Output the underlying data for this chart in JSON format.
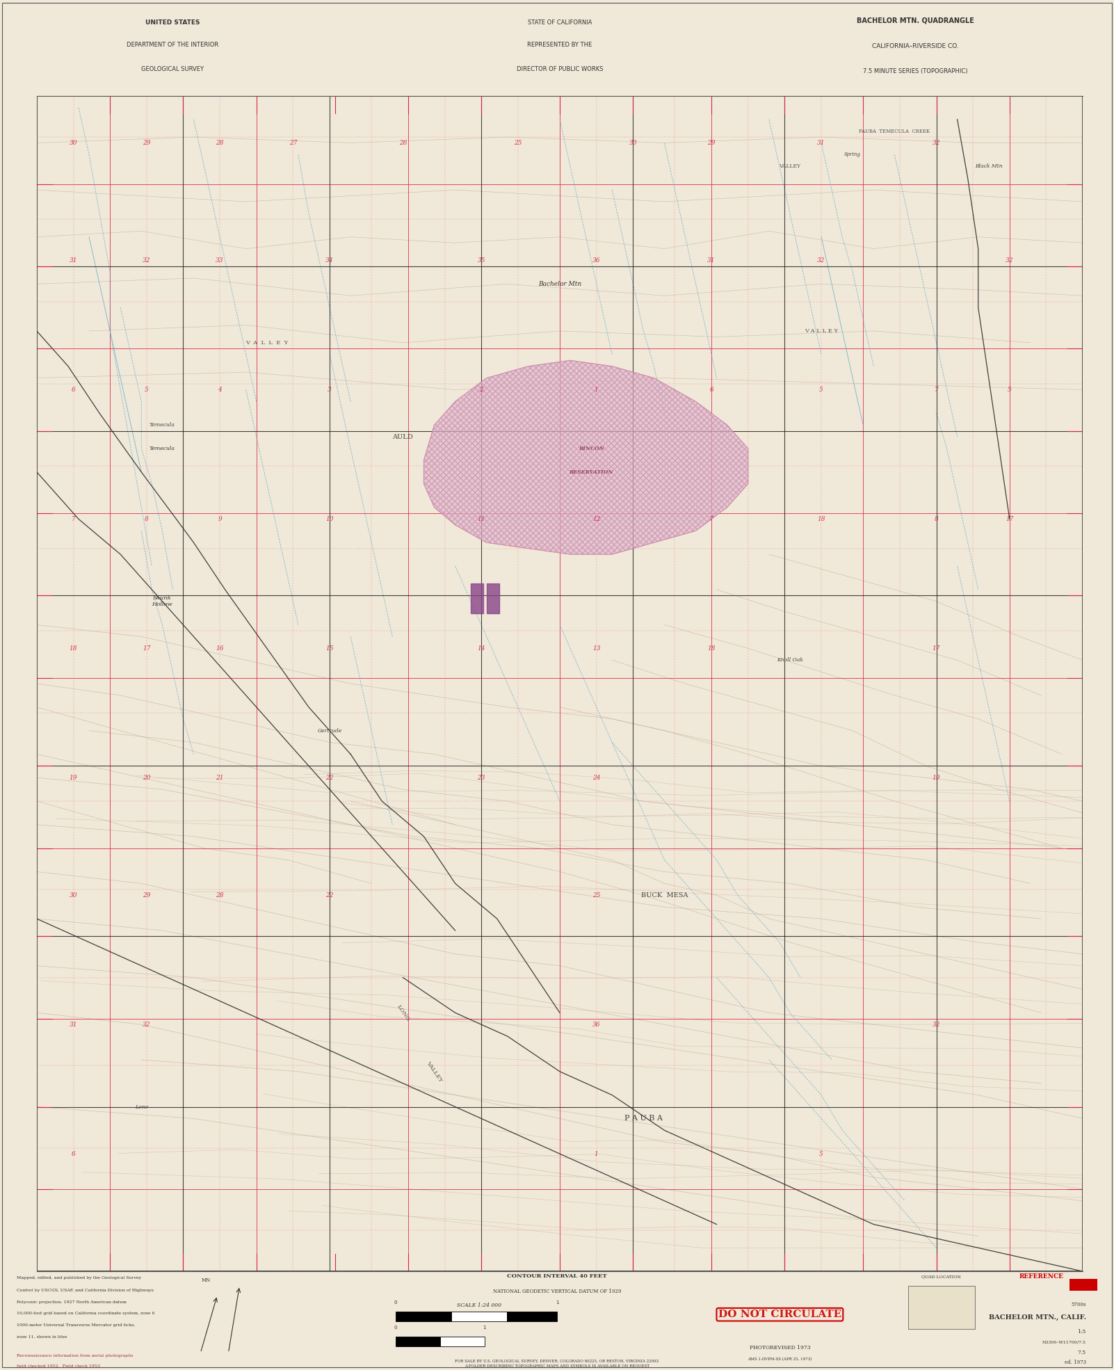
{
  "bg_color": "#f0e8d8",
  "map_bg": "#f2ead8",
  "header_bg": "#ede5d2",
  "border_color": "#111111",
  "title_left_lines": [
    "UNITED STATES",
    "DEPARTMENT OF THE INTERIOR",
    "GEOLOGICAL SURVEY"
  ],
  "title_center_lines": [
    "STATE OF CALIFORNIA",
    "REPRESENTED BY THE",
    "DIRECTOR OF PUBLIC WORKS"
  ],
  "title_right_lines": [
    "BACHELOR MTN. QUADRANGLE",
    "CALIFORNIA–RIVERSIDE CO.",
    "7.5 MINUTE SERIES (TOPOGRAPHIC)"
  ],
  "bottom_title": "BACHELOR MTN., CALIF.",
  "do_not_circulate": "DO NOT CIRCULATE",
  "photorevised": "PHOTOREVISED 1973",
  "contour_interval": "CONTOUR INTERVAL 40 FEET",
  "datum_note": "NATIONAL GEODETIC VERTICAL DATUM OF 1929",
  "series_code": "N3300–W11700/7.5",
  "scale_text": "1:24 000",
  "red_color": "#cc0000",
  "pink_color": "#dd3366",
  "grid_red": "#dd2244",
  "section_dashed": "#ee4466",
  "topo_color": "#b8a898",
  "water_color": "#55aacc",
  "road_black": "#333333",
  "section_num_color": "#cc2244",
  "text_color": "#333333",
  "purple_color": "#884488",
  "hatch_fill": "#ddb8cc",
  "hatch_edge": "#cc88aa",
  "black_road": "#222222",
  "footer_text": "#333333"
}
